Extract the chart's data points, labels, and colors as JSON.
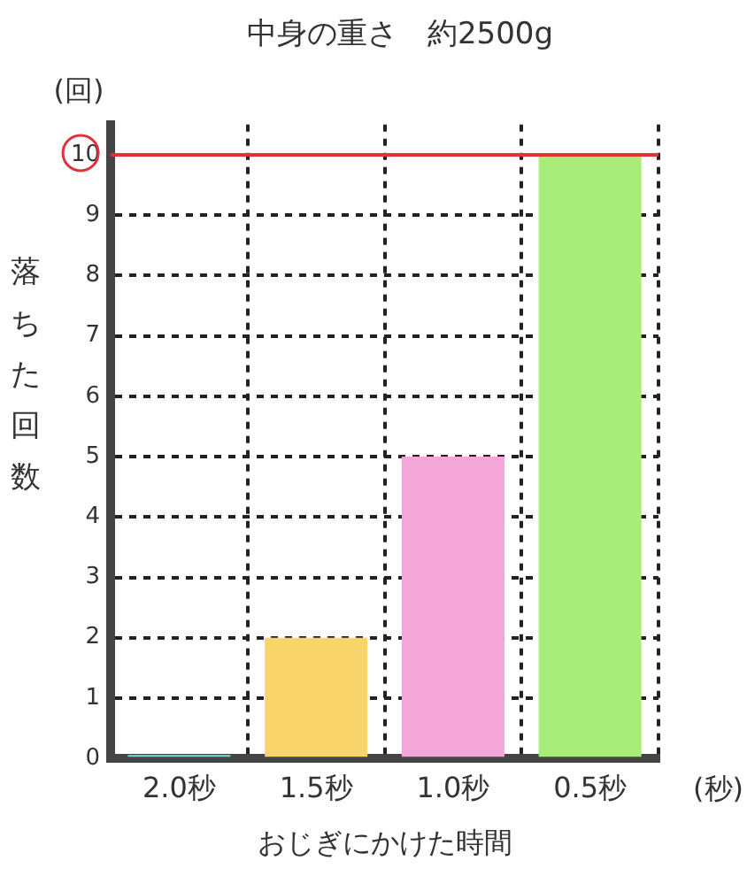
{
  "chart_data": {
    "type": "bar",
    "title": "中身の重さ　約2500g",
    "xlabel": "おじぎにかけた時間",
    "ylabel": "落ちた回数",
    "annotations": [
      "(回)",
      "(秒)"
    ],
    "categories": [
      "2.0秒",
      "1.5秒",
      "1.0秒",
      "0.5秒"
    ],
    "values": [
      0,
      2,
      5,
      10
    ],
    "colors": [
      "#7fd8e0",
      "#f9d46a",
      "#f4a6d8",
      "#a8ec7a"
    ],
    "ylim": [
      0,
      10.5
    ],
    "yticks": [
      0,
      1,
      2,
      3,
      4,
      5,
      6,
      7,
      8,
      9,
      10
    ],
    "ref_lines": [
      {
        "axis": "y",
        "value": 10,
        "color": "#e0303a"
      }
    ],
    "grid": true,
    "legend": false
  }
}
